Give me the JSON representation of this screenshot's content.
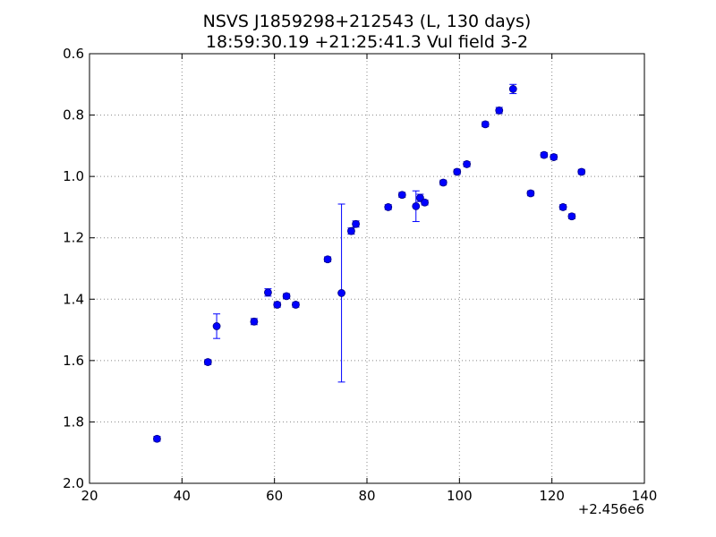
{
  "chart_data": {
    "type": "scatter",
    "title": "NSVS J1859298+212543 (L, 130 days)",
    "subtitle": "18:59:30.19 +21:25:41.3 Vul field 3-2",
    "xlabel": "",
    "ylabel": "",
    "x_offset_label": "+2.456e6",
    "xlim": [
      20,
      140
    ],
    "ylim": [
      0.6,
      2.0
    ],
    "y_inverted": true,
    "grid": true,
    "x_ticks": [
      "20",
      "40",
      "60",
      "80",
      "100",
      "120",
      "140"
    ],
    "y_ticks": [
      "0.6",
      "0.8",
      "1.0",
      "1.2",
      "1.4",
      "1.6",
      "1.8",
      "2.0"
    ],
    "marker_color": "#0000ff",
    "marker_edge_color": "#000080",
    "errorbar_color": "#0000ff",
    "grid_color": "#888888",
    "points": [
      {
        "x": 34.6,
        "y": 1.855,
        "err": 0.008
      },
      {
        "x": 45.6,
        "y": 1.605,
        "err": 0.008
      },
      {
        "x": 47.5,
        "y": 1.488,
        "err": 0.04
      },
      {
        "x": 55.6,
        "y": 1.473,
        "err": 0.01
      },
      {
        "x": 58.6,
        "y": 1.378,
        "err": 0.012
      },
      {
        "x": 60.6,
        "y": 1.418,
        "err": 0.008
      },
      {
        "x": 62.6,
        "y": 1.39,
        "err": 0.008
      },
      {
        "x": 64.6,
        "y": 1.418,
        "err": 0.008
      },
      {
        "x": 71.5,
        "y": 1.27,
        "err": 0.008
      },
      {
        "x": 74.5,
        "y": 1.38,
        "err": 0.29
      },
      {
        "x": 76.6,
        "y": 1.178,
        "err": 0.01
      },
      {
        "x": 77.6,
        "y": 1.155,
        "err": 0.01
      },
      {
        "x": 84.6,
        "y": 1.1,
        "err": 0.008
      },
      {
        "x": 87.6,
        "y": 1.06,
        "err": 0.008
      },
      {
        "x": 90.6,
        "y": 1.097,
        "err": 0.05
      },
      {
        "x": 91.5,
        "y": 1.07,
        "err": 0.012
      },
      {
        "x": 92.5,
        "y": 1.085,
        "err": 0.008
      },
      {
        "x": 96.5,
        "y": 1.02,
        "err": 0.008
      },
      {
        "x": 99.5,
        "y": 0.985,
        "err": 0.008
      },
      {
        "x": 101.6,
        "y": 0.96,
        "err": 0.008
      },
      {
        "x": 105.6,
        "y": 0.83,
        "err": 0.008
      },
      {
        "x": 108.6,
        "y": 0.785,
        "err": 0.01
      },
      {
        "x": 111.6,
        "y": 0.715,
        "err": 0.015
      },
      {
        "x": 115.4,
        "y": 1.055,
        "err": 0.008
      },
      {
        "x": 118.3,
        "y": 0.93,
        "err": 0.008
      },
      {
        "x": 120.4,
        "y": 0.937,
        "err": 0.008
      },
      {
        "x": 122.4,
        "y": 1.1,
        "err": 0.008
      },
      {
        "x": 124.3,
        "y": 1.13,
        "err": 0.008
      },
      {
        "x": 126.4,
        "y": 0.985,
        "err": 0.008
      }
    ]
  }
}
